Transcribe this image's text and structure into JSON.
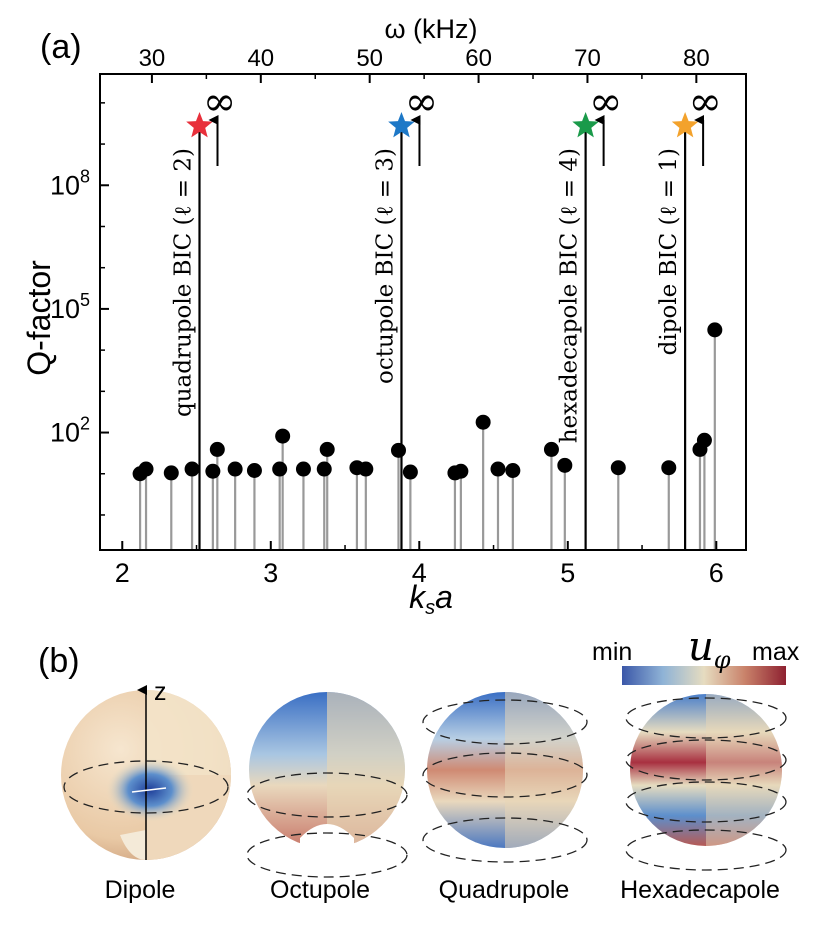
{
  "panel_a": {
    "label": "(a)"
  },
  "panel_b": {
    "label": "(b)",
    "axis_label": "z",
    "colorbar": {
      "min_label": "min",
      "max_label": "max",
      "symbol": "u",
      "symbol_sub": "φ",
      "colors": [
        "#3b57a8",
        "#8fb3d6",
        "#e6dcc0",
        "#c9826a",
        "#8e2131"
      ]
    },
    "spheres": [
      {
        "name": "Dipole"
      },
      {
        "name": "Octupole"
      },
      {
        "name": "Quadrupole"
      },
      {
        "name": "Hexadecapole"
      }
    ]
  },
  "chart_data": {
    "type": "scatter",
    "xlabel": "k",
    "xlabel_sub": "s",
    "xlabel_tail": "a",
    "ylabel": "Q-factor",
    "top_xlabel": "ω (kHz)",
    "x_ticks": [
      2,
      3,
      4,
      5,
      6
    ],
    "top_ticks": [
      30,
      40,
      50,
      60,
      70,
      80
    ],
    "y_ticks": [
      {
        "value": 100,
        "base": "10",
        "exp": "2"
      },
      {
        "value": 100000,
        "base": "10",
        "exp": "5"
      },
      {
        "value": 100000000,
        "base": "10",
        "exp": "8"
      }
    ],
    "xlim": [
      1.85,
      6.2
    ],
    "ylim_log10": [
      -0.85,
      10.7
    ],
    "yscale": "log",
    "ka_per_khz": 0.07332,
    "points": [
      {
        "x": 2.12,
        "y": 10
      },
      {
        "x": 2.16,
        "y": 13
      },
      {
        "x": 2.33,
        "y": 10.5
      },
      {
        "x": 2.47,
        "y": 13
      },
      {
        "x": 2.61,
        "y": 11.5
      },
      {
        "x": 2.64,
        "y": 39
      },
      {
        "x": 2.76,
        "y": 13
      },
      {
        "x": 2.89,
        "y": 12
      },
      {
        "x": 3.06,
        "y": 13
      },
      {
        "x": 3.08,
        "y": 82
      },
      {
        "x": 3.22,
        "y": 13
      },
      {
        "x": 3.36,
        "y": 13
      },
      {
        "x": 3.38,
        "y": 39
      },
      {
        "x": 3.58,
        "y": 14
      },
      {
        "x": 3.64,
        "y": 13
      },
      {
        "x": 3.86,
        "y": 37
      },
      {
        "x": 3.94,
        "y": 11
      },
      {
        "x": 4.24,
        "y": 10.5
      },
      {
        "x": 4.28,
        "y": 11.5
      },
      {
        "x": 4.43,
        "y": 178
      },
      {
        "x": 4.53,
        "y": 13
      },
      {
        "x": 4.63,
        "y": 12
      },
      {
        "x": 4.89,
        "y": 39
      },
      {
        "x": 4.98,
        "y": 16
      },
      {
        "x": 5.34,
        "y": 14
      },
      {
        "x": 5.68,
        "y": 14
      },
      {
        "x": 5.89,
        "y": 39
      },
      {
        "x": 5.92,
        "y": 65
      },
      {
        "x": 5.99,
        "y": 31000
      }
    ],
    "bics": [
      {
        "x": 2.52,
        "label": "quadrupole BIC (ℓ = 2)",
        "color": "#e8303b",
        "infinity": "∞"
      },
      {
        "x": 3.88,
        "label": "octupole BIC (ℓ = 3)",
        "color": "#1d78c7",
        "infinity": "∞"
      },
      {
        "x": 5.12,
        "label": "hexadecapole BIC (ℓ = 4)",
        "color": "#1a9a4a",
        "infinity": "∞"
      },
      {
        "x": 5.79,
        "label": "dipole BIC (ℓ = 1)",
        "color": "#f3a22c",
        "infinity": "∞"
      }
    ]
  }
}
